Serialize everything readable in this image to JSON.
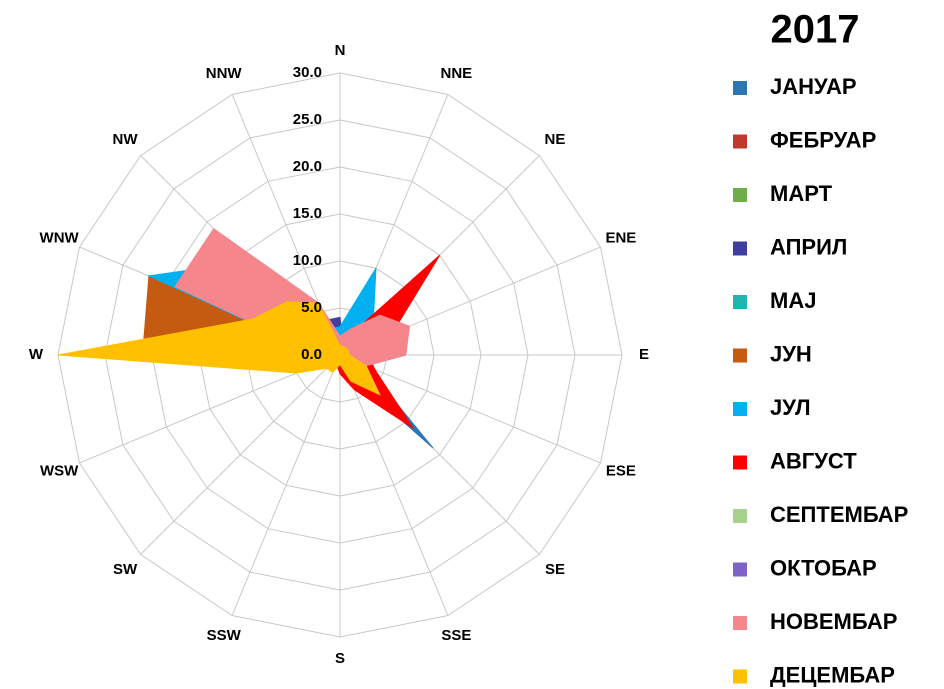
{
  "chart_data": {
    "type": "radar",
    "title": "2017",
    "categories": [
      "N",
      "NNE",
      "NE",
      "ENE",
      "E",
      "ESE",
      "SE",
      "SSE",
      "S",
      "SSW",
      "SW",
      "WSW",
      "W",
      "WNW",
      "NW",
      "NNW"
    ],
    "rlim": [
      0,
      30
    ],
    "rticks": [
      {
        "value": 0,
        "label": "0.0"
      },
      {
        "value": 5,
        "label": "5.0"
      },
      {
        "value": 10,
        "label": "10.0"
      },
      {
        "value": 15,
        "label": "15.0"
      },
      {
        "value": 20,
        "label": "20.0"
      },
      {
        "value": 25,
        "label": "25.0"
      },
      {
        "value": 30,
        "label": "30.0"
      }
    ],
    "grid": true,
    "series": [
      {
        "name": "ЈАНУАР",
        "color": "#2e75b6",
        "values": [
          1,
          1,
          2,
          2,
          7,
          3,
          14,
          2,
          1,
          1,
          1,
          1,
          1,
          1,
          2,
          4
        ]
      },
      {
        "name": "ФЕБРУАР",
        "color": "#c0392b",
        "values": [
          1,
          1,
          1,
          1,
          1,
          1,
          1,
          1,
          1,
          1,
          1,
          1,
          1,
          1,
          1,
          1
        ]
      },
      {
        "name": "МАРТ",
        "color": "#70ad47",
        "values": [
          1,
          1,
          1,
          1,
          1,
          1,
          1,
          1,
          1,
          1,
          1,
          1,
          2,
          3,
          10,
          3
        ]
      },
      {
        "name": "АПРИЛ",
        "color": "#3f3f9f",
        "values": [
          4,
          1,
          1,
          1,
          1,
          1,
          1,
          1,
          1,
          1,
          1,
          1,
          1,
          1,
          2,
          4
        ]
      },
      {
        "name": "МАЈ",
        "color": "#1fb5b0",
        "values": [
          1,
          1,
          1,
          1,
          1,
          1,
          1,
          1,
          1,
          1,
          1,
          1,
          1,
          1,
          1,
          1
        ]
      },
      {
        "name": "ЈУН",
        "color": "#c55a11",
        "values": [
          1,
          1,
          1,
          1,
          1,
          1,
          1,
          1,
          1,
          1,
          1,
          2,
          21,
          22,
          6,
          2
        ]
      },
      {
        "name": "ЈУЛ",
        "color": "#00b0f0",
        "values": [
          3,
          10,
          5,
          3,
          2,
          2,
          3,
          2,
          1,
          1,
          1,
          2,
          2,
          22,
          14,
          3
        ]
      },
      {
        "name": "АВГУСТ",
        "color": "#ff0000",
        "values": [
          1,
          2,
          15,
          6,
          3,
          4,
          11,
          4,
          2,
          1,
          1,
          1,
          1,
          1,
          1,
          1
        ]
      },
      {
        "name": "СЕПТЕМБАР",
        "color": "#a9d18e",
        "values": [
          1,
          1,
          1,
          1,
          1,
          1,
          1,
          1,
          1,
          1,
          1,
          1,
          1,
          1,
          1,
          1
        ]
      },
      {
        "name": "ОКТОБАР",
        "color": "#7f63c7",
        "values": [
          1,
          1,
          1,
          1,
          1,
          1,
          1,
          1,
          1,
          1,
          1,
          1,
          1,
          1,
          1,
          1
        ]
      },
      {
        "name": "НОВЕМБАР",
        "color": "#f4868c",
        "values": [
          2,
          3,
          6,
          8,
          7,
          3,
          2,
          1,
          1,
          1,
          1,
          1,
          2,
          19,
          19,
          6
        ]
      },
      {
        "name": "ДЕЦЕМБАР",
        "color": "#ffc000",
        "values": [
          1,
          1,
          1,
          1,
          1,
          3,
          6,
          3,
          1,
          2,
          2,
          5,
          30,
          10,
          8,
          6
        ]
      }
    ]
  }
}
